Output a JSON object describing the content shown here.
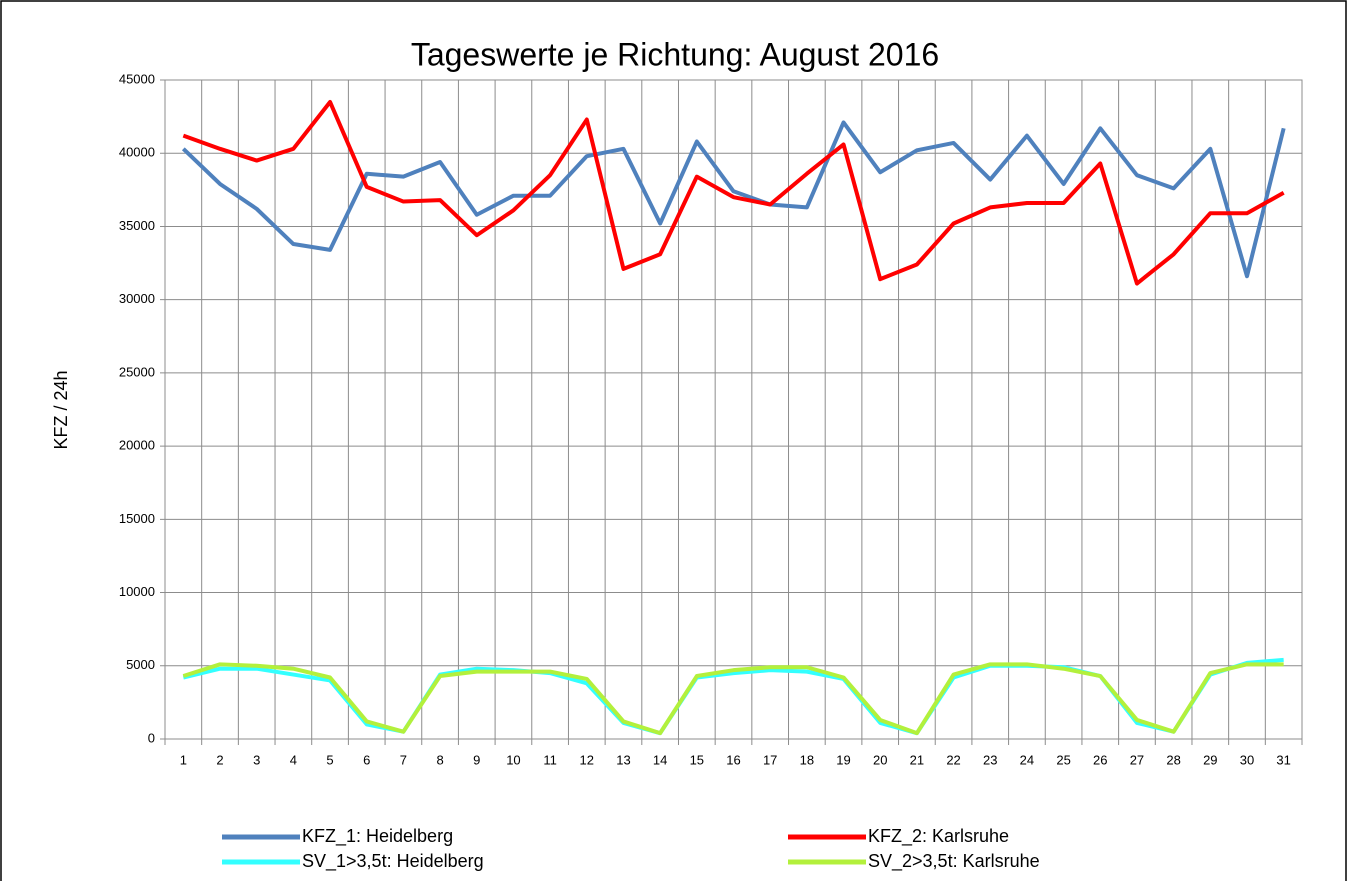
{
  "chart_data": {
    "type": "line",
    "title": "Tageswerte je Richtung: August 2016",
    "ylabel": "KFZ / 24h",
    "categories": [
      "1",
      "2",
      "3",
      "4",
      "5",
      "6",
      "7",
      "8",
      "9",
      "10",
      "11",
      "12",
      "13",
      "14",
      "15",
      "16",
      "17",
      "18",
      "19",
      "20",
      "21",
      "22",
      "23",
      "24",
      "25",
      "26",
      "27",
      "28",
      "29",
      "30",
      "31"
    ],
    "series": [
      {
        "name": "KFZ_1: Heidelberg",
        "color": "#4f81bd",
        "values": [
          40300,
          37900,
          36200,
          33800,
          33400,
          38600,
          38400,
          39400,
          35800,
          37100,
          37100,
          39800,
          40300,
          35200,
          40800,
          37400,
          36500,
          36300,
          42100,
          38700,
          40200,
          40700,
          38200,
          41200,
          37900,
          41700,
          38500,
          37600,
          40300,
          31600,
          41700
        ]
      },
      {
        "name": "KFZ_2: Karlsruhe",
        "color": "#ff0000",
        "values": [
          41200,
          40300,
          39500,
          40300,
          43500,
          37700,
          36700,
          36800,
          34400,
          36100,
          38500,
          42300,
          32100,
          33100,
          38400,
          37000,
          36500,
          38600,
          40600,
          31400,
          32400,
          35200,
          36300,
          36600,
          36600,
          39300,
          31100,
          33100,
          35900,
          35900,
          37300
        ]
      },
      {
        "name": "SV_1>3,5t: Heidelberg",
        "color": "#33ffff",
        "values": [
          4200,
          4800,
          4800,
          4400,
          4000,
          1000,
          500,
          4400,
          4800,
          4700,
          4500,
          3800,
          1100,
          400,
          4200,
          4500,
          4700,
          4600,
          4100,
          1100,
          400,
          4200,
          5000,
          5000,
          4900,
          4300,
          1100,
          500,
          4400,
          5200,
          5400
        ]
      },
      {
        "name": "SV_2>3,5t: Karlsruhe",
        "color": "#b3f03c",
        "values": [
          4300,
          5100,
          5000,
          4800,
          4200,
          1200,
          500,
          4300,
          4600,
          4600,
          4600,
          4100,
          1200,
          400,
          4300,
          4700,
          4900,
          4900,
          4200,
          1300,
          400,
          4400,
          5100,
          5100,
          4800,
          4300,
          1300,
          500,
          4500,
          5100,
          5100
        ]
      }
    ],
    "ylim": [
      0,
      45000
    ],
    "yticks": [
      0,
      5000,
      10000,
      15000,
      20000,
      25000,
      30000,
      35000,
      40000,
      45000
    ],
    "grid": true,
    "legend": "bottom"
  }
}
